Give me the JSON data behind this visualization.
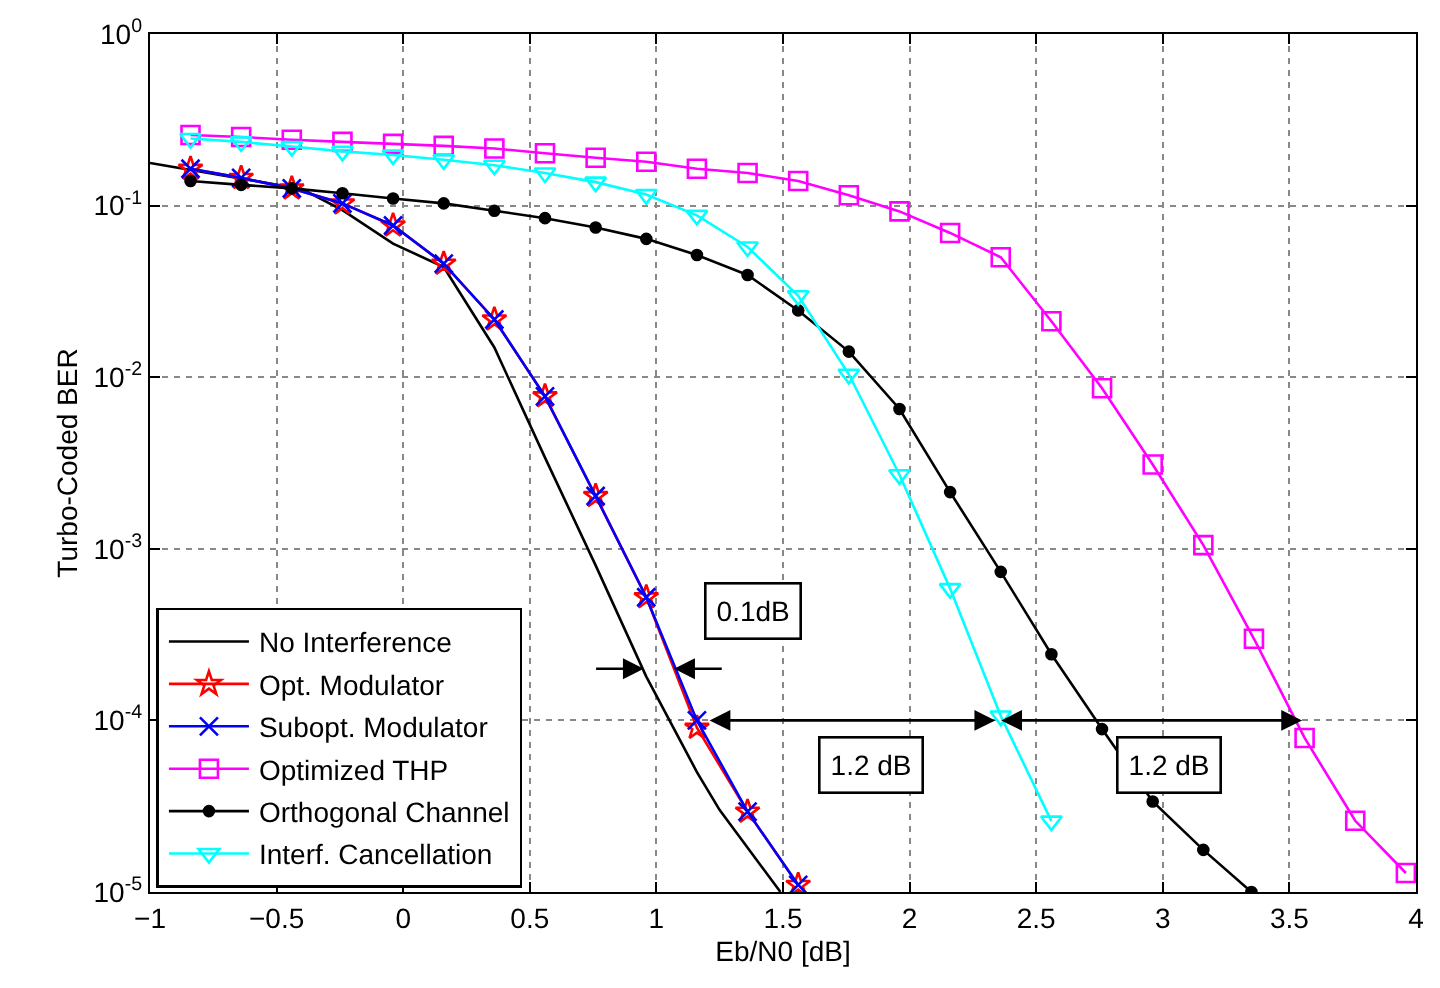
{
  "chart_data": {
    "type": "line",
    "xlabel": "Eb/N0 [dB]",
    "ylabel": "Turbo-Coded BER",
    "log": "y",
    "grid": true,
    "legend": "bottom left",
    "xlim": [
      -1,
      4
    ],
    "xticks": [
      -1,
      -0.5,
      0,
      0.5,
      1,
      1.5,
      2,
      2.5,
      3,
      3.5,
      4
    ],
    "ylim": [
      1e-05,
      1
    ],
    "yticks": [
      {
        "value": 1,
        "label": "10$^{0}$"
      },
      {
        "value": 0.1,
        "label": "10$^{-1}$"
      },
      {
        "value": 0.01,
        "label": "10$^{-2}$"
      },
      {
        "value": 0.001,
        "label": "10$^{-3}$"
      },
      {
        "value": 0.0001,
        "label": "10$^{-4}$"
      },
      {
        "value": 1e-05,
        "label": "10$^{-5}$"
      }
    ],
    "series": [
      {
        "name": "No Interference",
        "color": "#000000",
        "marker": "none",
        "x": [
          -1,
          -0.4,
          -0.24,
          -0.04,
          0.16,
          0.36,
          0.56,
          0.76,
          0.96,
          1.16,
          1.25,
          1.49
        ],
        "values": [
          0.177,
          0.125,
          0.094,
          0.06,
          0.0439,
          0.0149,
          0.0034,
          0.0008,
          0.00018,
          5e-05,
          3e-05,
          1e-05
        ]
      },
      {
        "name": "Opt. Modulator",
        "color": "#ff0000",
        "marker": "star",
        "x": [
          -0.84,
          -0.64,
          -0.44,
          -0.24,
          -0.04,
          0.16,
          0.36,
          0.56,
          0.76,
          0.96,
          1.16,
          1.36,
          1.56
        ],
        "values": [
          0.164,
          0.145,
          0.126,
          0.103,
          0.0766,
          0.0459,
          0.0217,
          0.00774,
          0.00203,
          0.000522,
          9.06e-05,
          2.94e-05,
          1.1e-05
        ]
      },
      {
        "name": "Subopt. Modulator",
        "color": "#0000ff",
        "marker": "cross",
        "x": [
          -0.84,
          -0.64,
          -0.44,
          -0.24,
          -0.04,
          0.16,
          0.36,
          0.56,
          0.76,
          0.96,
          1.16,
          1.36,
          1.56
        ],
        "values": [
          0.164,
          0.145,
          0.126,
          0.103,
          0.0766,
          0.0459,
          0.0217,
          0.00774,
          0.00203,
          0.000522,
          0.0001,
          2.94e-05,
          1.1e-05
        ]
      },
      {
        "name": "Optimized THP",
        "color": "#ff00ff",
        "marker": "square",
        "x": [
          -0.84,
          -0.64,
          -0.44,
          -0.24,
          -0.04,
          0.16,
          0.36,
          0.56,
          0.76,
          0.96,
          1.16,
          1.36,
          1.56,
          1.76,
          1.96,
          2.16,
          2.36,
          2.56,
          2.76,
          2.96,
          3.16,
          3.36,
          3.56,
          3.76,
          3.96
        ],
        "values": [
          0.258,
          0.251,
          0.242,
          0.235,
          0.229,
          0.223,
          0.215,
          0.202,
          0.19,
          0.18,
          0.164,
          0.155,
          0.139,
          0.115,
          0.0925,
          0.0693,
          0.05,
          0.0212,
          0.00863,
          0.0031,
          0.00105,
          0.000299,
          7.9e-05,
          2.6e-05,
          1.29e-05
        ]
      },
      {
        "name": "Orthogonal Channel",
        "color": "#000000",
        "marker": "circle",
        "x": [
          -0.84,
          -0.64,
          -0.44,
          -0.24,
          -0.04,
          0.16,
          0.36,
          0.56,
          0.76,
          0.96,
          1.16,
          1.36,
          1.56,
          1.76,
          1.96,
          2.16,
          2.36,
          2.56,
          2.76,
          2.96,
          3.16,
          3.35
        ],
        "values": [
          0.139,
          0.132,
          0.126,
          0.118,
          0.11,
          0.103,
          0.0933,
          0.0845,
          0.0745,
          0.064,
          0.0515,
          0.0394,
          0.0245,
          0.0141,
          0.00653,
          0.00214,
          0.000734,
          0.000243,
          8.9e-05,
          3.37e-05,
          1.76e-05,
          1e-05
        ]
      },
      {
        "name": "Interf. Cancellation",
        "color": "#00ffff",
        "marker": "triangle",
        "x": [
          -0.84,
          -0.64,
          -0.44,
          -0.24,
          -0.04,
          0.16,
          0.36,
          0.56,
          0.76,
          0.96,
          1.16,
          1.36,
          1.56,
          1.76,
          1.96,
          2.16,
          2.36,
          2.56
        ],
        "values": [
          0.246,
          0.235,
          0.221,
          0.207,
          0.197,
          0.185,
          0.172,
          0.155,
          0.137,
          0.116,
          0.0877,
          0.0574,
          0.0298,
          0.0104,
          0.0027,
          0.000586,
          0.000106,
          2.59e-05
        ]
      }
    ],
    "annotations": [
      {
        "text": "0.1dB",
        "x": 1.07,
        "y": 0.0002
      },
      "1.2 dB",
      "1.2 dB"
    ]
  }
}
